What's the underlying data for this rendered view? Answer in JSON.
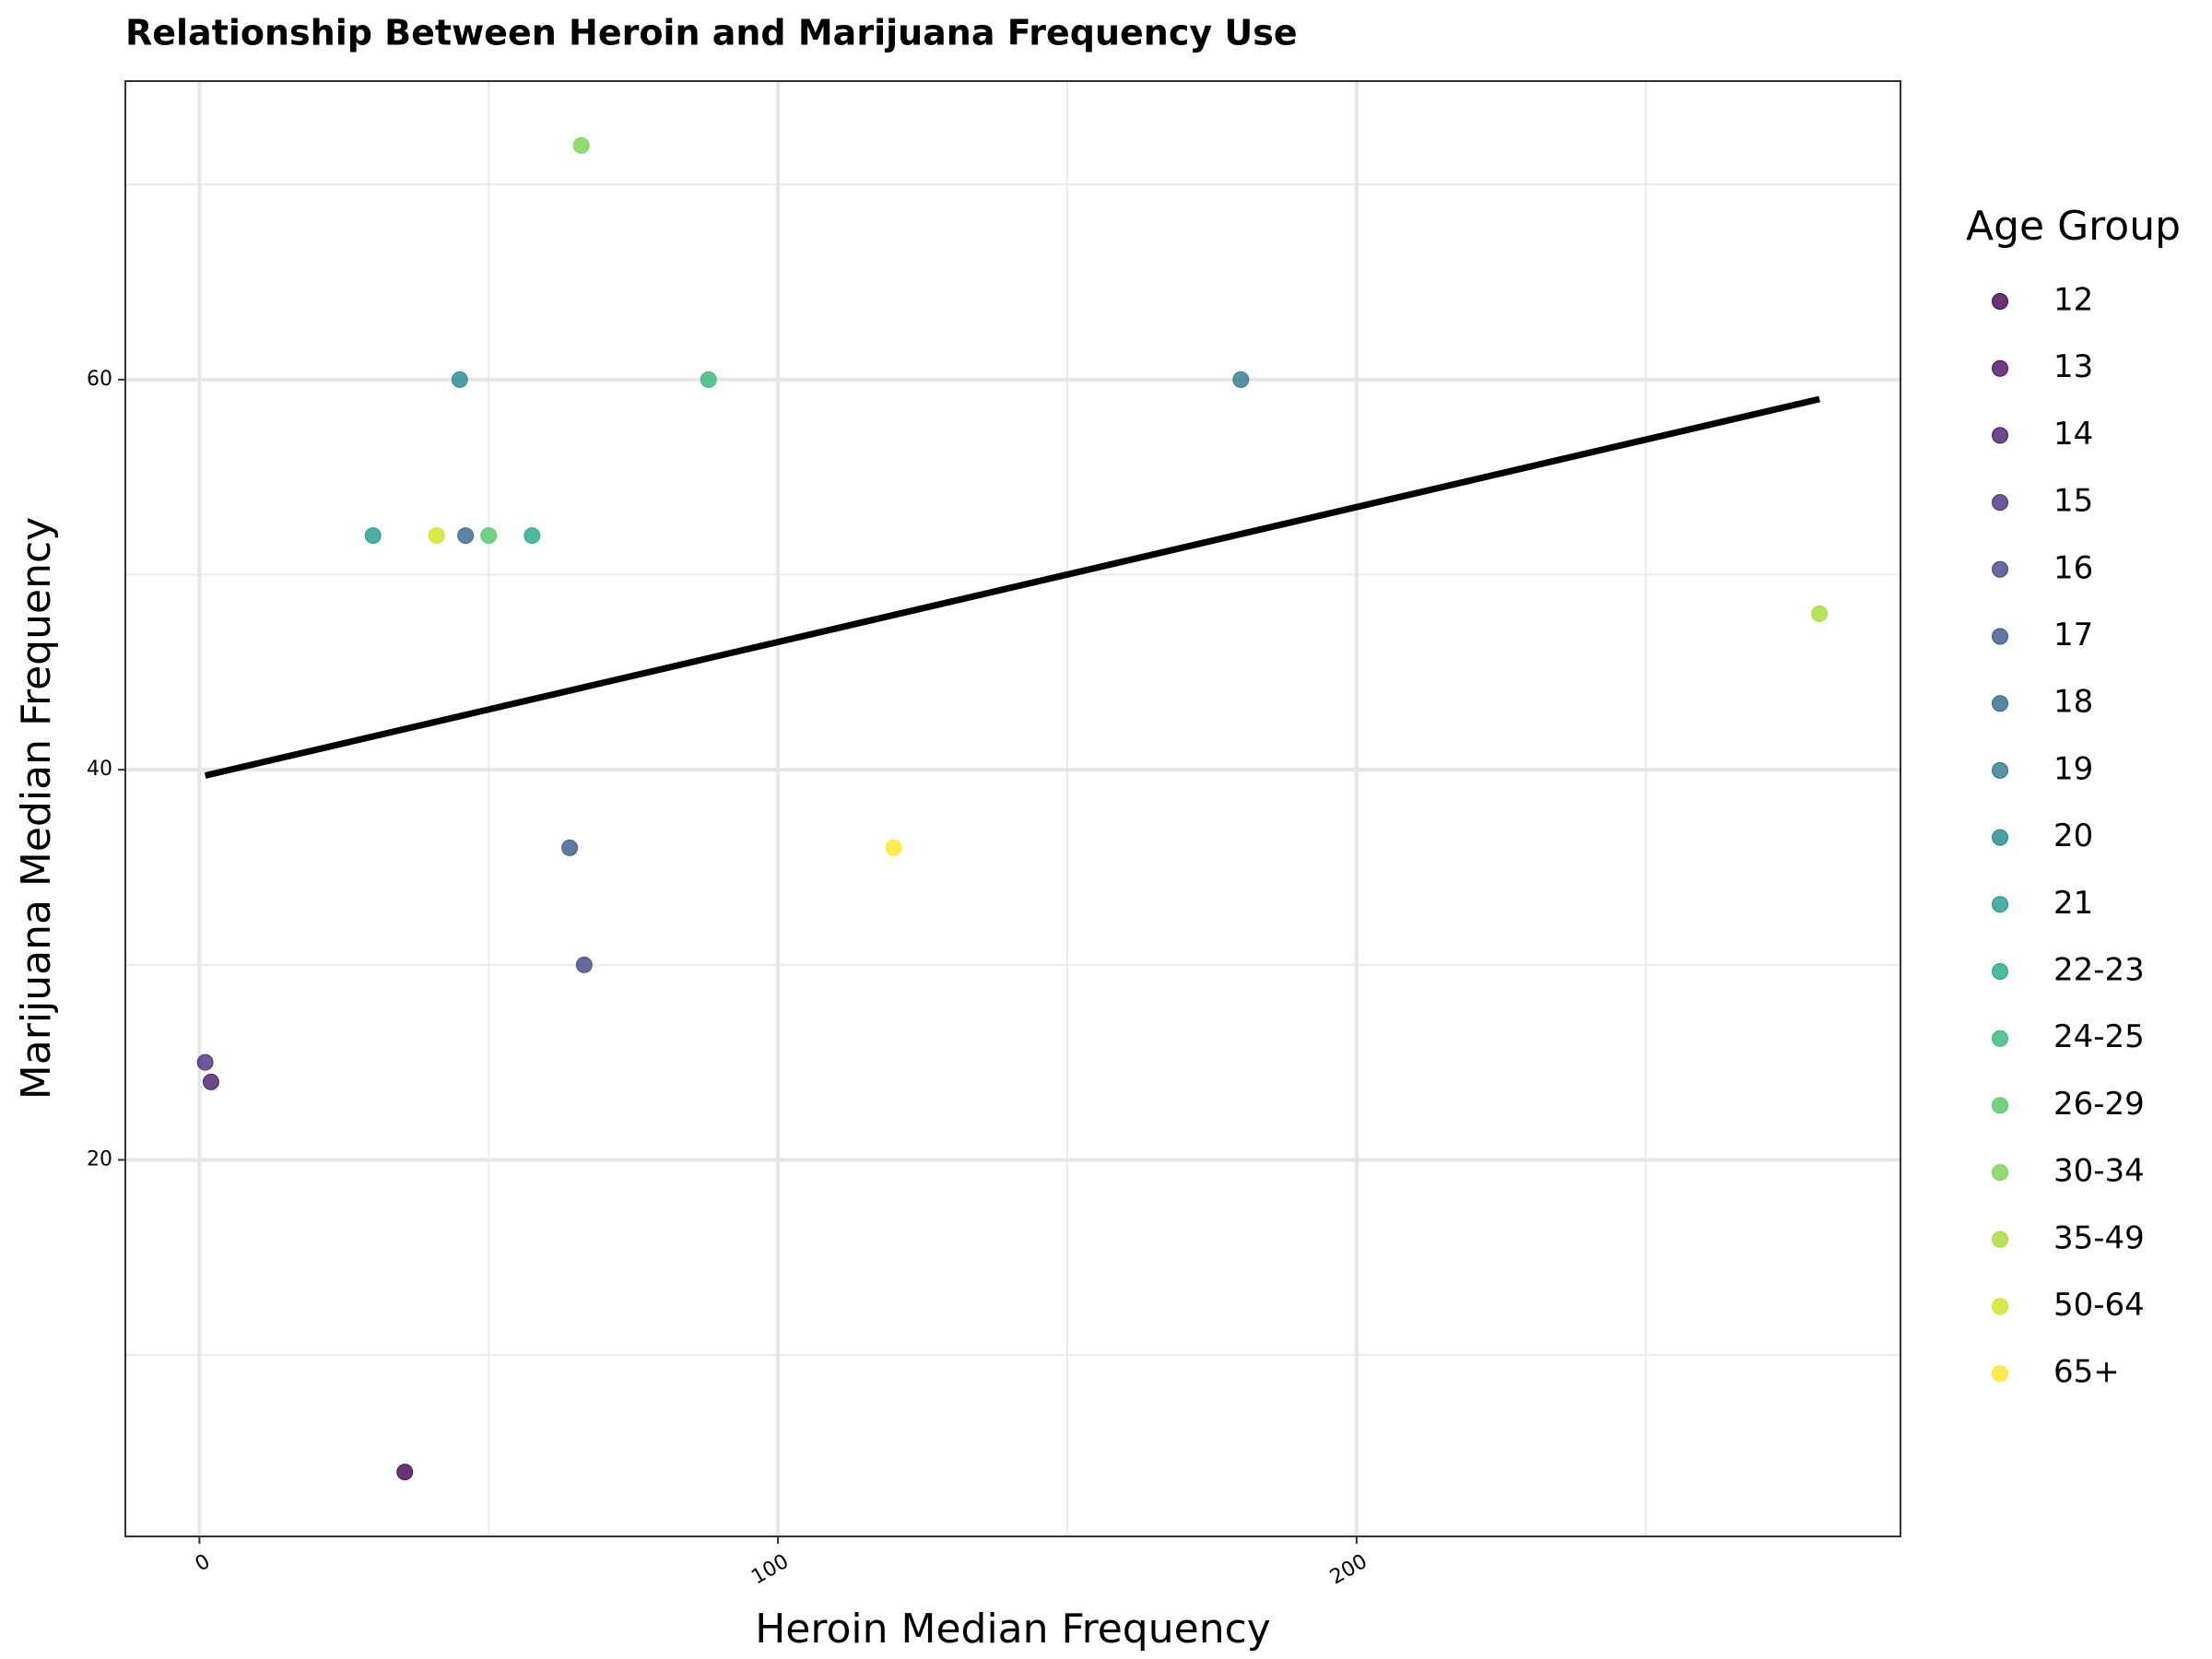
{
  "chart_data": {
    "type": "scatter",
    "title": "Relationship Between Heroin and Marijuana Frequency Use",
    "x_label": "Heroin Median Frequency",
    "y_label": "Marijuana Median Frequency",
    "legend_title": "Age Group",
    "xlim": [
      -12.8,
      294
    ],
    "ylim": [
      0.7,
      75.3
    ],
    "xticks": [
      0,
      100,
      200
    ],
    "yticks": [
      20,
      40,
      60
    ],
    "x_minor_grid": [
      50,
      150,
      250
    ],
    "y_minor_grid": [
      10,
      30,
      50,
      70
    ],
    "grid": true,
    "legend": "right",
    "series": [
      {
        "name": "12",
        "color": "#440154",
        "x": [
          35.5
        ],
        "values": [
          4
        ]
      },
      {
        "name": "13",
        "color": "#470E61",
        "x": [],
        "values": []
      },
      {
        "name": "14",
        "color": "#481A6C",
        "x": [
          2
        ],
        "values": [
          24
        ]
      },
      {
        "name": "15",
        "color": "#472F7D",
        "x": [
          1
        ],
        "values": [
          25
        ]
      },
      {
        "name": "16",
        "color": "#414487",
        "x": [
          66.5
        ],
        "values": [
          30
        ]
      },
      {
        "name": "17",
        "color": "#39568C",
        "x": [
          64
        ],
        "values": [
          36
        ]
      },
      {
        "name": "18",
        "color": "#31688E",
        "x": [
          46
        ],
        "values": [
          52
        ]
      },
      {
        "name": "19",
        "color": "#2A788E",
        "x": [
          180
        ],
        "values": [
          60
        ]
      },
      {
        "name": "20",
        "color": "#23888E",
        "x": [
          45
        ],
        "values": [
          60
        ]
      },
      {
        "name": "21",
        "color": "#1F988B",
        "x": [
          30
        ],
        "values": [
          52
        ]
      },
      {
        "name": "22-23",
        "color": "#22A884",
        "x": [
          57.5
        ],
        "values": [
          52
        ]
      },
      {
        "name": "24-25",
        "color": "#35B779",
        "x": [
          88
        ],
        "values": [
          60
        ]
      },
      {
        "name": "26-29",
        "color": "#54C568",
        "x": [
          50
        ],
        "values": [
          52
        ]
      },
      {
        "name": "30-34",
        "color": "#7AD151",
        "x": [
          66
        ],
        "values": [
          72
        ]
      },
      {
        "name": "35-49",
        "color": "#A5DB36",
        "x": [
          280
        ],
        "values": [
          48
        ]
      },
      {
        "name": "50-64",
        "color": "#D2E21B",
        "x": [
          41
        ],
        "values": [
          52
        ]
      },
      {
        "name": "65+",
        "color": "#FDE725",
        "x": [
          120
        ],
        "values": [
          36
        ]
      }
    ],
    "trendline": {
      "color": "#000000",
      "x": [
        1,
        280
      ],
      "values": [
        39.7,
        59
      ]
    }
  }
}
